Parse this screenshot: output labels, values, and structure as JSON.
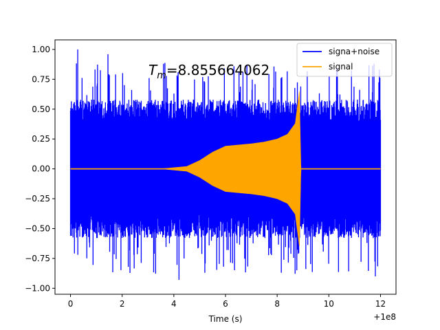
{
  "chart_data": {
    "type": "line",
    "title": "",
    "xlabel": "Time (s)",
    "ylabel": "",
    "x_offset_label": "+1e8",
    "xlim": [
      -0.6,
      12.6
    ],
    "ylim": [
      -1.05,
      1.08
    ],
    "x_ticks": [
      0,
      2,
      4,
      6,
      8,
      10,
      12
    ],
    "x_tick_labels": [
      "0",
      "2",
      "4",
      "6",
      "8",
      "10",
      "12"
    ],
    "y_ticks": [
      -1.0,
      -0.75,
      -0.5,
      -0.25,
      0.0,
      0.25,
      0.5,
      0.75,
      1.0
    ],
    "y_tick_labels": [
      "−1.00",
      "−0.75",
      "−0.50",
      "−0.25",
      "0.00",
      "0.25",
      "0.50",
      "0.75",
      "1.00"
    ],
    "grid": false,
    "legend_position": "top-right",
    "annotation": {
      "prefix": "T",
      "subscript": "m",
      "text": "=8.855664062",
      "x": 3.0,
      "y": 0.82
    },
    "series": [
      {
        "name": "signa+noise",
        "color": "#0000ff",
        "description": "noise band roughly ±0.4 to ±0.6 with spikes up to about ±1.0 over the full range 0 to 12"
      },
      {
        "name": "signal",
        "color": "#ffa500",
        "envelope": {
          "t": [
            0,
            3.5,
            4.5,
            5.0,
            5.5,
            6.0,
            6.5,
            7.0,
            7.5,
            8.0,
            8.4,
            8.7,
            8.86,
            8.92,
            12
          ],
          "amp": [
            0.0,
            0.0,
            0.02,
            0.07,
            0.14,
            0.19,
            0.2,
            0.21,
            0.225,
            0.25,
            0.29,
            0.38,
            0.65,
            0.0,
            0.0
          ]
        }
      }
    ]
  }
}
